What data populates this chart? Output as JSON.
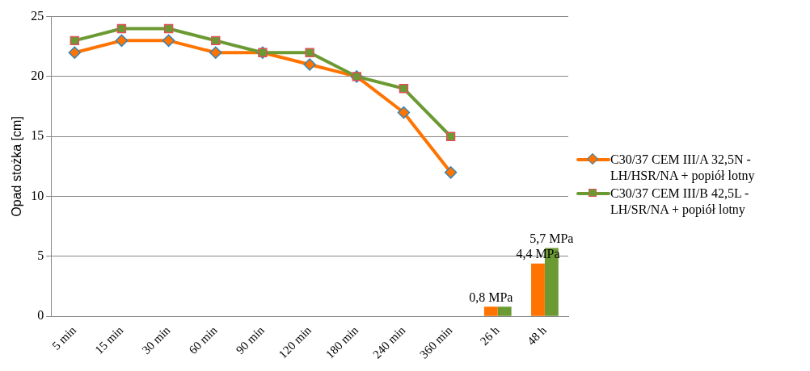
{
  "chart_data": {
    "type": "line",
    "categories": [
      "5 min",
      "15 min",
      "30 min",
      "60 min",
      "90 min",
      "120 min",
      "180 min",
      "240 min",
      "360 min",
      "26 h",
      "48 h"
    ],
    "ylabel": "Opad stożka [cm]",
    "ylim": [
      0,
      25
    ],
    "yticks": [
      0,
      5,
      10,
      15,
      20,
      25
    ],
    "grid": "y",
    "legend": "right",
    "series": [
      {
        "name": "C30/37 CEM III/A 32,5N - LH/HSR/NA + popiół lotny",
        "color": "#ff7300",
        "marker": "diamond",
        "values": [
          22,
          23,
          23,
          22,
          22,
          21,
          20,
          17,
          12,
          null,
          null
        ]
      },
      {
        "name": "C30/37 CEM III/B 42,5L - LH/SR/NA + popiół lotny",
        "color": "#6b9a33",
        "marker": "square",
        "values": [
          23,
          24,
          24,
          23,
          22,
          22,
          20,
          19,
          15,
          null,
          null
        ]
      },
      {
        "type": "bar",
        "color": "#ff7300",
        "values": [
          null,
          null,
          null,
          null,
          null,
          null,
          null,
          null,
          null,
          0.8,
          4.4
        ],
        "value_labels": [
          null,
          null,
          null,
          null,
          null,
          null,
          null,
          null,
          null,
          "0,8 MPa",
          "4,4 MPa"
        ]
      },
      {
        "type": "bar",
        "color": "#6b9a33",
        "values": [
          null,
          null,
          null,
          null,
          null,
          null,
          null,
          null,
          null,
          0.8,
          5.7
        ],
        "value_labels": [
          null,
          null,
          null,
          null,
          null,
          null,
          null,
          null,
          null,
          null,
          "5,7 MPa"
        ]
      }
    ]
  }
}
